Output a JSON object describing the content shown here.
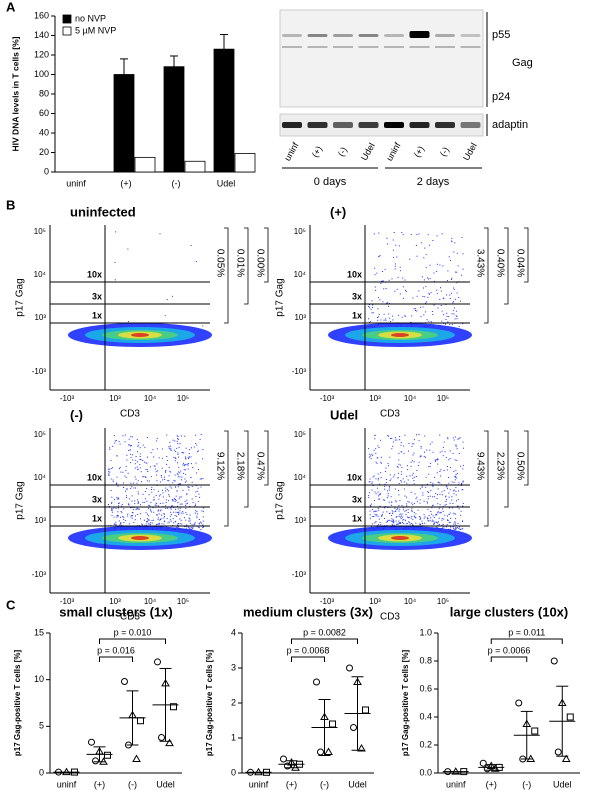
{
  "panel_labels": [
    "A",
    "B",
    "C"
  ],
  "chart_data": [
    {
      "type": "bar",
      "y_label": "HIV DNA levels in T cells [%]",
      "categories": [
        "uninf",
        "(+)",
        "(-)",
        "Udel"
      ],
      "series": [
        {
          "name": "no NVP",
          "color": "#000000",
          "values": [
            null,
            100,
            108,
            126
          ],
          "errors": [
            null,
            16,
            11,
            15
          ]
        },
        {
          "name": "5 µM NVP",
          "color": "#ffffff",
          "values": [
            null,
            15,
            11,
            19
          ]
        }
      ],
      "ylim": [
        0,
        160
      ],
      "yticks": [
        0,
        20,
        40,
        60,
        80,
        100,
        120,
        140,
        160
      ],
      "legend": "upper left"
    },
    {
      "type": "dot",
      "title": "small clusters (1x)",
      "y_label": "p17 Gag-positive T cells [%]",
      "categories": [
        "uninf",
        "(+)",
        "(-)",
        "Udel"
      ],
      "points": [
        [
          0.1,
          0.1,
          0.1
        ],
        [
          3.3,
          2.3,
          1.9,
          1.3,
          1.2
        ],
        [
          9.8,
          6.2,
          5.6,
          3.0,
          1.5
        ],
        [
          11.9,
          9.6,
          7.1,
          3.8,
          3.2
        ]
      ],
      "mean": [
        0.1,
        2.0,
        5.9,
        7.3
      ],
      "sd": [
        0,
        0.8,
        2.9,
        3.9
      ],
      "ylim": [
        0,
        15
      ],
      "yticks": [
        0,
        5,
        10,
        15
      ],
      "annotations": [
        "p = 0.016",
        "p = 0.010"
      ]
    },
    {
      "type": "dot",
      "title": "medium clusters (3x)",
      "y_label": "p17 Gag-positive T cells [%]",
      "categories": [
        "uninf",
        "(+)",
        "(-)",
        "Udel"
      ],
      "points": [
        [
          0.02,
          0.02,
          0.02
        ],
        [
          0.4,
          0.3,
          0.25,
          0.2,
          0.15
        ],
        [
          2.6,
          1.6,
          1.4,
          0.6,
          0.6
        ],
        [
          3.0,
          2.6,
          1.8,
          1.3,
          0.7
        ]
      ],
      "mean": [
        0.02,
        0.25,
        1.3,
        1.7
      ],
      "sd": [
        0,
        0.1,
        0.8,
        1.05
      ],
      "ylim": [
        0,
        4
      ],
      "yticks": [
        0,
        1,
        2,
        3,
        4
      ],
      "annotations": [
        "p = 0.0068",
        "p = 0.0082"
      ]
    },
    {
      "type": "dot",
      "title": "large clusters (10x)",
      "y_label": "p17 Gag-positive T cells [%]",
      "categories": [
        "uninf",
        "(+)",
        "(-)",
        "Udel"
      ],
      "points": [
        [
          0.01,
          0.01,
          0.01
        ],
        [
          0.07,
          0.05,
          0.04,
          0.03,
          0.03
        ],
        [
          0.5,
          0.35,
          0.3,
          0.1,
          0.1
        ],
        [
          0.8,
          0.5,
          0.4,
          0.15,
          0.1
        ]
      ],
      "mean": [
        0.01,
        0.04,
        0.27,
        0.37
      ],
      "sd": [
        0,
        0.02,
        0.17,
        0.25
      ],
      "ylim": [
        0,
        1.0
      ],
      "yticks": [
        {
          "value": 0,
          "label": "0.0"
        },
        0.2,
        0.4,
        0.6,
        0.8,
        {
          "value": 1.0,
          "label": "1.0"
        }
      ],
      "annotations": [
        "p = 0.0066",
        "p = 0.011"
      ]
    }
  ],
  "blot": {
    "labels": [
      "p55",
      "Gag",
      "p24",
      "adaptin"
    ],
    "lanes": [
      "uninf",
      "(+)",
      "(-)",
      "Udel",
      "uninf",
      "(+)",
      "(-)",
      "Udel"
    ],
    "groups": [
      "0 days",
      "2 days"
    ]
  },
  "flow": {
    "y_label": "p17 Gag",
    "x_label": "CD3",
    "gates": [
      "10x",
      "3x",
      "1x"
    ],
    "yticks": [
      "10⁵",
      "10⁴",
      "10³",
      "-10³"
    ],
    "xticks": [
      "-10³",
      "10³",
      "10⁴",
      "10⁵"
    ],
    "plots": [
      {
        "title": "uninfected",
        "percentages": [
          "0.05%",
          "0.01%",
          "0.00%"
        ]
      },
      {
        "title": "(+)",
        "percentages": [
          "3.43%",
          "0.40%",
          "0.04%"
        ]
      },
      {
        "title": "(-)",
        "percentages": [
          "9.12%",
          "2.18%",
          "0.47%"
        ]
      },
      {
        "title": "Udel",
        "percentages": [
          "9.43%",
          "2.23%",
          "0.50%"
        ]
      }
    ]
  }
}
